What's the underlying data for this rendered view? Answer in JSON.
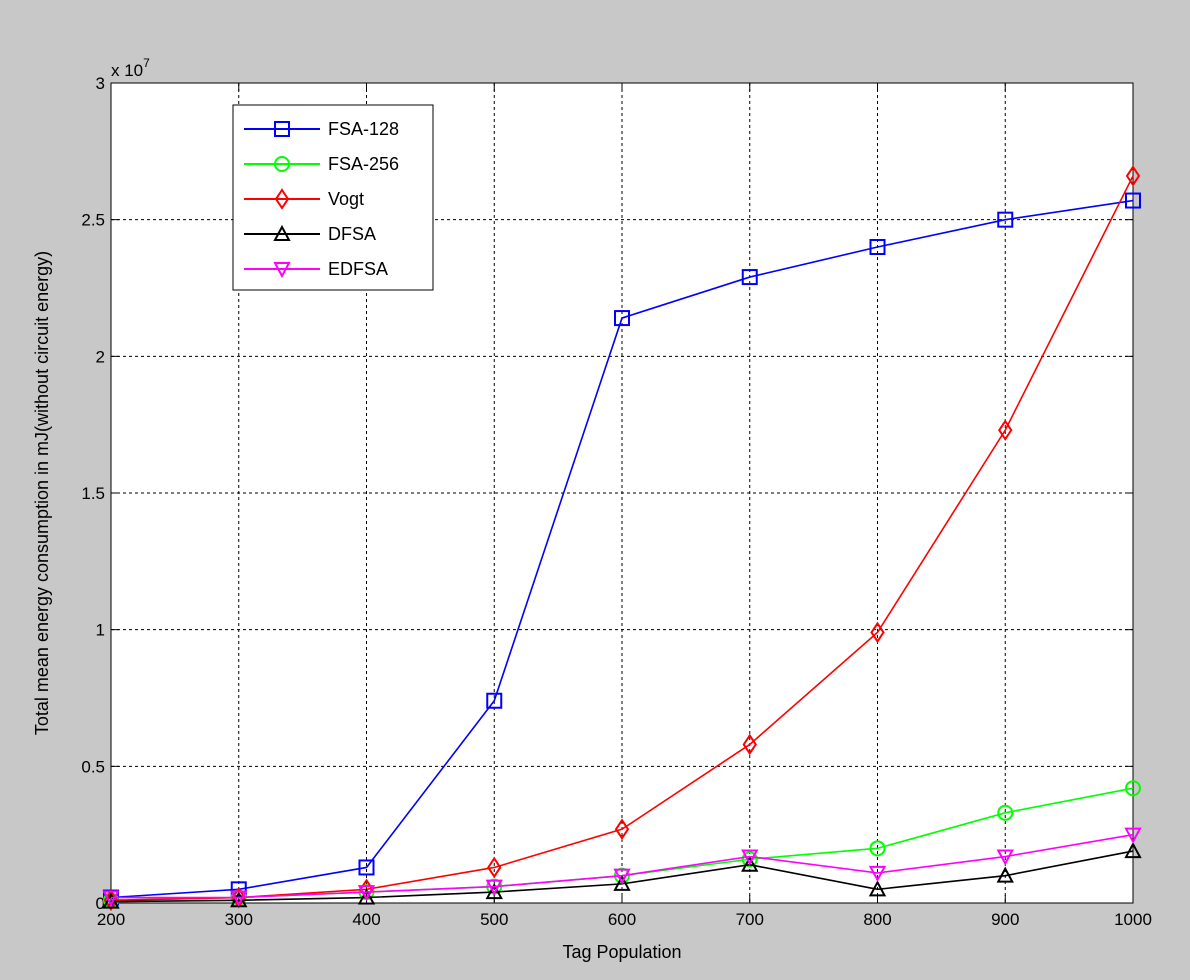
{
  "chart_data": {
    "type": "line",
    "xlabel": "Tag Population",
    "ylabel": "Total mean energy consumption in mJ(without circuit energy)",
    "y_multiplier": "x 10",
    "y_exponent": "7",
    "xlim": [
      200,
      1000
    ],
    "ylim": [
      0,
      3
    ],
    "y_scale": "x 10^7",
    "grid": true,
    "legend_position": "top-left",
    "x_ticks": [
      "200",
      "300",
      "400",
      "500",
      "600",
      "700",
      "800",
      "900",
      "1000"
    ],
    "y_ticks": [
      "0",
      "0.5",
      "1",
      "1.5",
      "2",
      "2.5",
      "3"
    ],
    "x": [
      200,
      300,
      400,
      500,
      600,
      700,
      800,
      900,
      1000
    ],
    "series": [
      {
        "name": "FSA-128",
        "color": "#0000ff",
        "marker": "square",
        "values": [
          0.02,
          0.05,
          0.13,
          0.74,
          2.14,
          2.29,
          2.4,
          2.5,
          2.57
        ]
      },
      {
        "name": "FSA-256",
        "color": "#00ff00",
        "marker": "circle",
        "values": [
          0.01,
          0.02,
          0.04,
          0.06,
          0.1,
          0.16,
          0.2,
          0.33,
          0.42
        ]
      },
      {
        "name": "Vogt",
        "color": "#ff0000",
        "marker": "diamond",
        "values": [
          0.01,
          0.02,
          0.05,
          0.13,
          0.27,
          0.58,
          0.99,
          1.73,
          2.66
        ]
      },
      {
        "name": "DFSA",
        "color": "#000000",
        "marker": "triangle-up",
        "values": [
          0.005,
          0.01,
          0.02,
          0.04,
          0.07,
          0.14,
          0.05,
          0.1,
          0.19
        ]
      },
      {
        "name": "EDFSA",
        "color": "#ff00ff",
        "marker": "triangle-down",
        "values": [
          0.02,
          0.02,
          0.04,
          0.06,
          0.1,
          0.17,
          0.11,
          0.17,
          0.25
        ]
      }
    ]
  }
}
